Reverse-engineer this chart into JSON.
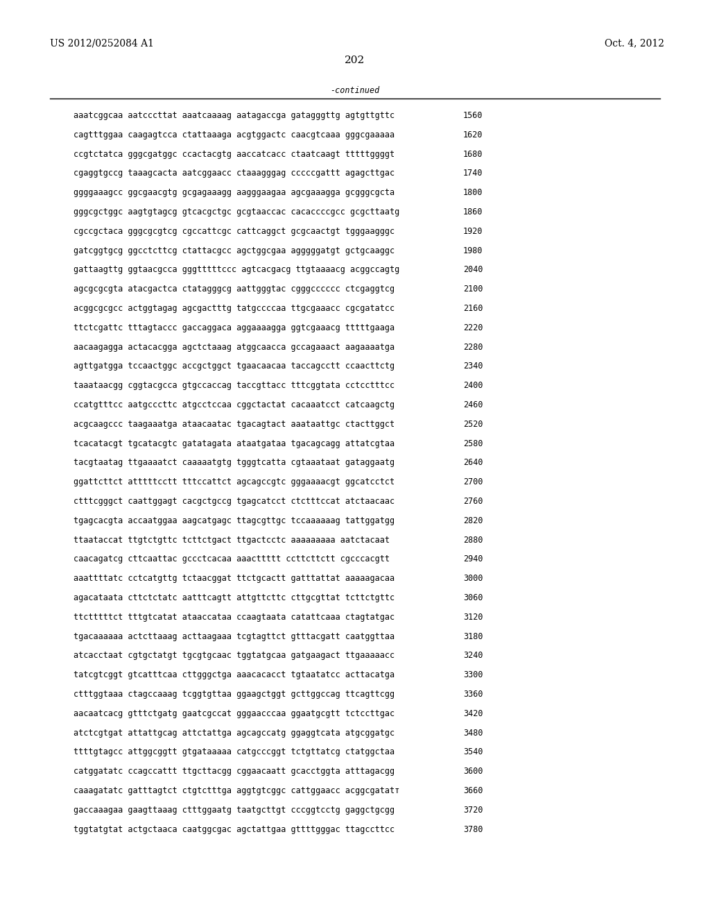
{
  "header_left": "US 2012/0252084 A1",
  "header_right": "Oct. 4, 2012",
  "page_number": "202",
  "continued_label": "-continued",
  "background_color": "#ffffff",
  "text_color": "#000000",
  "font_size_header": 10.0,
  "font_size_body": 8.5,
  "font_size_page": 11.0,
  "lines": [
    {
      "seq": "aaatcggcaa aatcccttat aaatcaaaag aatagaccga gatagggttg agtgttgttc",
      "num": "1560"
    },
    {
      "seq": "cagtttggaa caagagtcca ctattaaaga acgtggactc caacgtcaaa gggcgaaaaa",
      "num": "1620"
    },
    {
      "seq": "ccgtctatca gggcgatggc ccactacgtg aaccatcacc ctaatcaagt tttttggggt",
      "num": "1680"
    },
    {
      "seq": "cgaggtgccg taaagcacta aatcggaacc ctaaagggag cccccgattt agagcttgac",
      "num": "1740"
    },
    {
      "seq": "ggggaaagcc ggcgaacgtg gcgagaaagg aagggaagaa agcgaaagga gcgggcgcta",
      "num": "1800"
    },
    {
      "seq": "gggcgctggc aagtgtagcg gtcacgctgc gcgtaaccac cacaccccgcc gcgcttaatg",
      "num": "1860"
    },
    {
      "seq": "cgccgctaca gggcgcgtcg cgccattcgc cattcaggct gcgcaactgt tgggaagggc",
      "num": "1920"
    },
    {
      "seq": "gatcggtgcg ggcctcttcg ctattacgcc agctggcgaa agggggatgt gctgcaaggc",
      "num": "1980"
    },
    {
      "seq": "gattaagttg ggtaacgcca gggtttttccc agtcacgacg ttgtaaaacg acggccagtg",
      "num": "2040"
    },
    {
      "seq": "agcgcgcgta atacgactca ctatagggcg aattgggtac cgggcccccc ctcgaggtcg",
      "num": "2100"
    },
    {
      "seq": "acggcgcgcc actggtagag agcgactttg tatgccccaa ttgcgaaacc cgcgatatcc",
      "num": "2160"
    },
    {
      "seq": "ttctcgattc tttagtaccc gaccaggaca aggaaaagga ggtcgaaacg tttttgaaga",
      "num": "2220"
    },
    {
      "seq": "aacaagagga actacacgga agctctaaag atggcaacca gccagaaact aagaaaatga",
      "num": "2280"
    },
    {
      "seq": "agttgatgga tccaactggc accgctggct tgaacaacaa taccagcctt ccaacttctg",
      "num": "2340"
    },
    {
      "seq": "taaataacgg cggtacgcca gtgccaccag taccgttacc tttcggtata cctcctttcc",
      "num": "2400"
    },
    {
      "seq": "ccatgtttcc aatgcccttc atgcctccaa cggctactat cacaaatcct catcaagctg",
      "num": "2460"
    },
    {
      "seq": "acgcaagccc taagaaatga ataacaatac tgacagtact aaataattgc ctacttggct",
      "num": "2520"
    },
    {
      "seq": "tcacatacgt tgcatacgtc gatatagata ataatgataa tgacagcagg attatcgtaa",
      "num": "2580"
    },
    {
      "seq": "tacgtaatag ttgaaaatct caaaaatgtg tgggtcatta cgtaaataat gataggaatg",
      "num": "2640"
    },
    {
      "seq": "ggattcttct atttttcctt tttccattct agcagccgtc gggaaaacgt ggcatcctct",
      "num": "2700"
    },
    {
      "seq": "ctttcgggct caattggagt cacgctgccg tgagcatcct ctctttccat atctaacaac",
      "num": "2760"
    },
    {
      "seq": "tgagcacgta accaatggaa aagcatgagc ttagcgttgc tccaaaaaag tattggatgg",
      "num": "2820"
    },
    {
      "seq": "ttaataccat ttgtctgttc tcttctgact ttgactcctc aaaaaaaaa aatctacaat",
      "num": "2880"
    },
    {
      "seq": "caacagatcg cttcaattac gccctcacaa aaacttttt ccttcttctt cgcccacgtt",
      "num": "2940"
    },
    {
      "seq": "aaattttatc cctcatgttg tctaacggat ttctgcactt gatttattat aaaaagacaa",
      "num": "3000"
    },
    {
      "seq": "agacataata cttctctatc aatttcagtt attgttcttc cttgcgttat tcttctgttc",
      "num": "3060"
    },
    {
      "seq": "ttctttttct tttgtcatat ataaccataa ccaagtaata catattcaaa ctagtatgac",
      "num": "3120"
    },
    {
      "seq": "tgacaaaaaa actcttaaag acttaagaaa tcgtagttct gtttacgatt caatggttaa",
      "num": "3180"
    },
    {
      "seq": "atcacctaat cgtgctatgt tgcgtgcaac tggtatgcaa gatgaagact ttgaaaaacc",
      "num": "3240"
    },
    {
      "seq": "tatcgtcggt gtcatttcaa cttgggctga aaacacacct tgtaatatcc acttacatga",
      "num": "3300"
    },
    {
      "seq": "ctttggtaaa ctagccaaag tcggtgttaa ggaagctggt gcttggccag ttcagttcgg",
      "num": "3360"
    },
    {
      "seq": "aacaatcacg gtttctgatg gaatcgccat gggaacccaa ggaatgcgtt tctccttgac",
      "num": "3420"
    },
    {
      "seq": "atctcgtgat attattgcag attctattga agcagccatg ggaggtcata atgcggatgc",
      "num": "3480"
    },
    {
      "seq": "ttttgtagcc attggcggtt gtgataaaaa catgcccggt tctgttatcg ctatggctaa",
      "num": "3540"
    },
    {
      "seq": "catggatatc ccagccattt ttgcttacgg cggaacaatt gcacctggta atttagacgg",
      "num": "3600"
    },
    {
      "seq": "caaagatatc gatttagtct ctgtctttga aggtgtcggc cattggaacc acggcgatatт",
      "num": "3660"
    },
    {
      "seq": "gaccaaagaa gaagttaaag ctttggaatg taatgcttgt cccggtcctg gaggctgcgg",
      "num": "3720"
    },
    {
      "seq": "tggtatgtat actgctaaca caatggcgac agctattgaa gttttgggac ttagccttcc",
      "num": "3780"
    }
  ]
}
